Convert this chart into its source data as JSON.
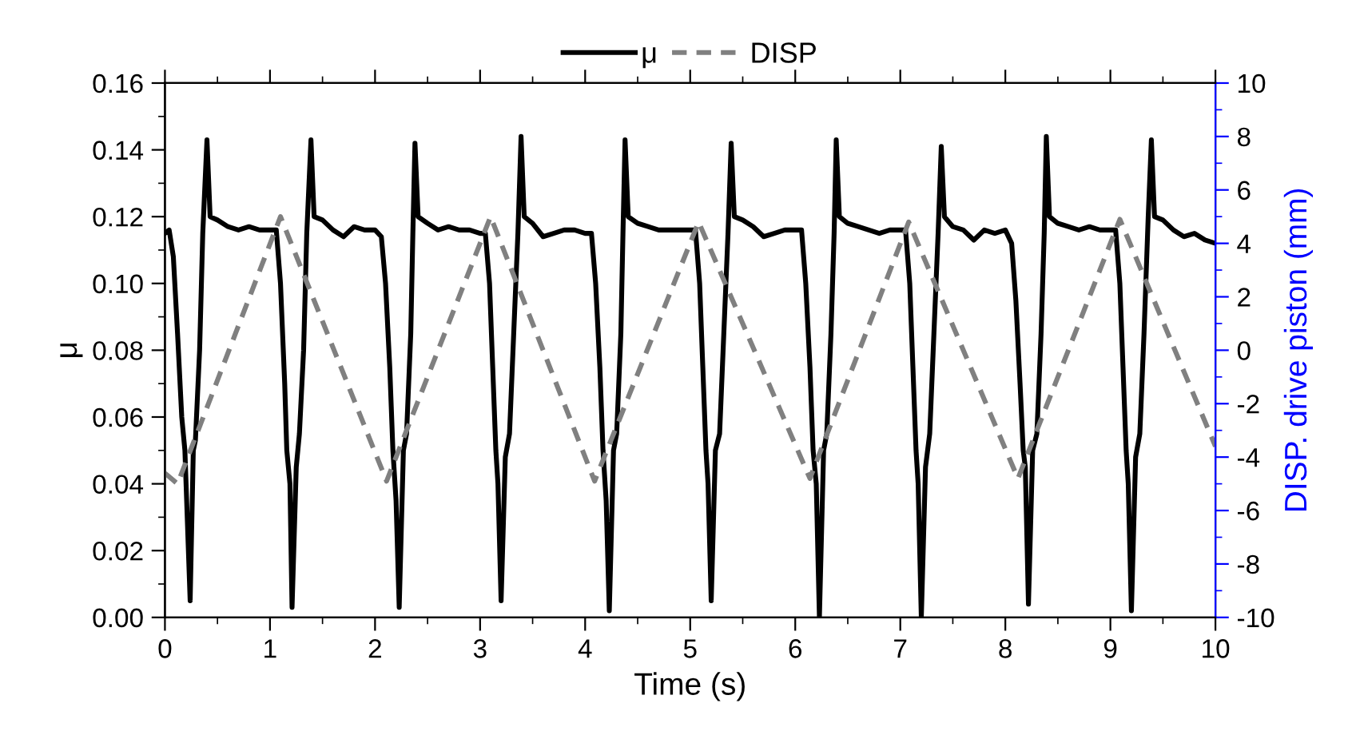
{
  "chart_data": {
    "type": "line",
    "xlabel": "Time (s)",
    "ylabel": "μ",
    "y2label": "DISP. drive piston (mm)",
    "xlim": [
      0,
      10
    ],
    "xticks": [
      0,
      1,
      2,
      3,
      4,
      5,
      6,
      7,
      8,
      9,
      10
    ],
    "ylim": [
      0,
      0.16
    ],
    "yticks": [
      {
        "value": 0,
        "label": "0.00"
      },
      {
        "value": 0.02,
        "label": "0.02"
      },
      {
        "value": 0.04,
        "label": "0.04"
      },
      {
        "value": 0.06,
        "label": "0.06"
      },
      {
        "value": 0.08,
        "label": "0.08"
      },
      {
        "value": 0.1,
        "label": "0.10"
      },
      {
        "value": 0.12,
        "label": "0.12"
      },
      {
        "value": 0.14,
        "label": "0.14"
      },
      {
        "value": 0.16,
        "label": "0.16"
      }
    ],
    "y2lim": [
      -10,
      10
    ],
    "y2ticks": [
      -10,
      -8,
      -6,
      -4,
      -2,
      0,
      2,
      4,
      6,
      8,
      10
    ],
    "grid": false,
    "legend": "top",
    "marker": "none",
    "series": [
      {
        "name": "μ",
        "color": "#000000",
        "line_style": "solid",
        "x": [
          0,
          0.04,
          0.08,
          0.12,
          0.16,
          0.19,
          0.24,
          0.27,
          0.29,
          0.33,
          0.36,
          0.4,
          0.43,
          0.5,
          0.6,
          0.7,
          0.8,
          0.9,
          1.0,
          1.06,
          1.1,
          1.14,
          1.16,
          1.19,
          1.21,
          1.25,
          1.28,
          1.32,
          1.35,
          1.39,
          1.42,
          1.5,
          1.6,
          1.7,
          1.8,
          1.9,
          2.0,
          2.06,
          2.1,
          2.14,
          2.17,
          2.2,
          2.23,
          2.27,
          2.3,
          2.34,
          2.36,
          2.38,
          2.41,
          2.5,
          2.6,
          2.7,
          2.8,
          2.9,
          3.0,
          3.05,
          3.09,
          3.12,
          3.15,
          3.17,
          3.2,
          3.24,
          3.28,
          3.32,
          3.36,
          3.39,
          3.42,
          3.5,
          3.6,
          3.7,
          3.8,
          3.9,
          4.0,
          4.06,
          4.1,
          4.14,
          4.17,
          4.2,
          4.23,
          4.27,
          4.3,
          4.34,
          4.36,
          4.38,
          4.41,
          4.5,
          4.6,
          4.7,
          4.8,
          4.9,
          5.0,
          5.05,
          5.09,
          5.12,
          5.15,
          5.17,
          5.2,
          5.24,
          5.28,
          5.32,
          5.36,
          5.39,
          5.42,
          5.5,
          5.6,
          5.7,
          5.8,
          5.9,
          6.0,
          6.06,
          6.1,
          6.14,
          6.17,
          6.2,
          6.23,
          6.27,
          6.3,
          6.34,
          6.37,
          6.39,
          6.42,
          6.5,
          6.6,
          6.7,
          6.8,
          6.9,
          7.0,
          7.05,
          7.09,
          7.12,
          7.15,
          7.17,
          7.2,
          7.24,
          7.28,
          7.32,
          7.36,
          7.39,
          7.42,
          7.5,
          7.6,
          7.7,
          7.8,
          7.9,
          8.0,
          8.06,
          8.1,
          8.14,
          8.17,
          8.19,
          8.22,
          8.26,
          8.3,
          8.34,
          8.37,
          8.39,
          8.42,
          8.5,
          8.6,
          8.7,
          8.8,
          8.9,
          9.0,
          9.05,
          9.09,
          9.12,
          9.15,
          9.17,
          9.2,
          9.24,
          9.28,
          9.32,
          9.36,
          9.39,
          9.42,
          9.5,
          9.6,
          9.7,
          9.8,
          9.9,
          10.0
        ],
        "values": [
          0.115,
          0.116,
          0.108,
          0.085,
          0.06,
          0.05,
          0.005,
          0.05,
          0.053,
          0.08,
          0.115,
          0.143,
          0.12,
          0.119,
          0.117,
          0.116,
          0.117,
          0.116,
          0.116,
          0.116,
          0.1,
          0.07,
          0.05,
          0.04,
          0.003,
          0.045,
          0.055,
          0.08,
          0.115,
          0.143,
          0.12,
          0.119,
          0.116,
          0.114,
          0.117,
          0.116,
          0.116,
          0.114,
          0.1,
          0.075,
          0.05,
          0.035,
          0.003,
          0.05,
          0.055,
          0.085,
          0.115,
          0.142,
          0.12,
          0.118,
          0.116,
          0.117,
          0.116,
          0.116,
          0.115,
          0.115,
          0.1,
          0.075,
          0.05,
          0.04,
          0.005,
          0.048,
          0.055,
          0.085,
          0.115,
          0.144,
          0.12,
          0.118,
          0.114,
          0.115,
          0.116,
          0.116,
          0.115,
          0.115,
          0.1,
          0.075,
          0.05,
          0.035,
          0.002,
          0.05,
          0.055,
          0.085,
          0.115,
          0.143,
          0.12,
          0.118,
          0.117,
          0.116,
          0.116,
          0.116,
          0.116,
          0.116,
          0.1,
          0.075,
          0.05,
          0.04,
          0.005,
          0.05,
          0.055,
          0.085,
          0.115,
          0.142,
          0.12,
          0.119,
          0.117,
          0.114,
          0.115,
          0.116,
          0.116,
          0.116,
          0.1,
          0.075,
          0.05,
          0.04,
          0.0,
          0.05,
          0.055,
          0.085,
          0.115,
          0.143,
          0.12,
          0.118,
          0.117,
          0.116,
          0.115,
          0.116,
          0.116,
          0.116,
          0.1,
          0.075,
          0.05,
          0.04,
          0.0,
          0.045,
          0.055,
          0.085,
          0.115,
          0.141,
          0.12,
          0.117,
          0.116,
          0.113,
          0.116,
          0.115,
          0.116,
          0.112,
          0.095,
          0.07,
          0.05,
          0.045,
          0.004,
          0.05,
          0.055,
          0.085,
          0.115,
          0.144,
          0.12,
          0.118,
          0.117,
          0.116,
          0.117,
          0.116,
          0.116,
          0.116,
          0.1,
          0.075,
          0.05,
          0.04,
          0.002,
          0.048,
          0.055,
          0.085,
          0.12,
          0.143,
          0.12,
          0.119,
          0.116,
          0.114,
          0.115,
          0.113,
          0.112
        ]
      },
      {
        "name": "DISP",
        "color": "#808080",
        "line_style": "dashed",
        "axis": "y2",
        "x": [
          0,
          0.12,
          1.1,
          2.11,
          3.1,
          4.09,
          5.08,
          6.14,
          7.08,
          8.12,
          9.09,
          10.0
        ],
        "values": [
          -4.6,
          -5.0,
          5.0,
          -4.9,
          5.0,
          -4.9,
          4.8,
          -4.8,
          4.8,
          -4.8,
          4.9,
          -3.6
        ]
      }
    ]
  }
}
